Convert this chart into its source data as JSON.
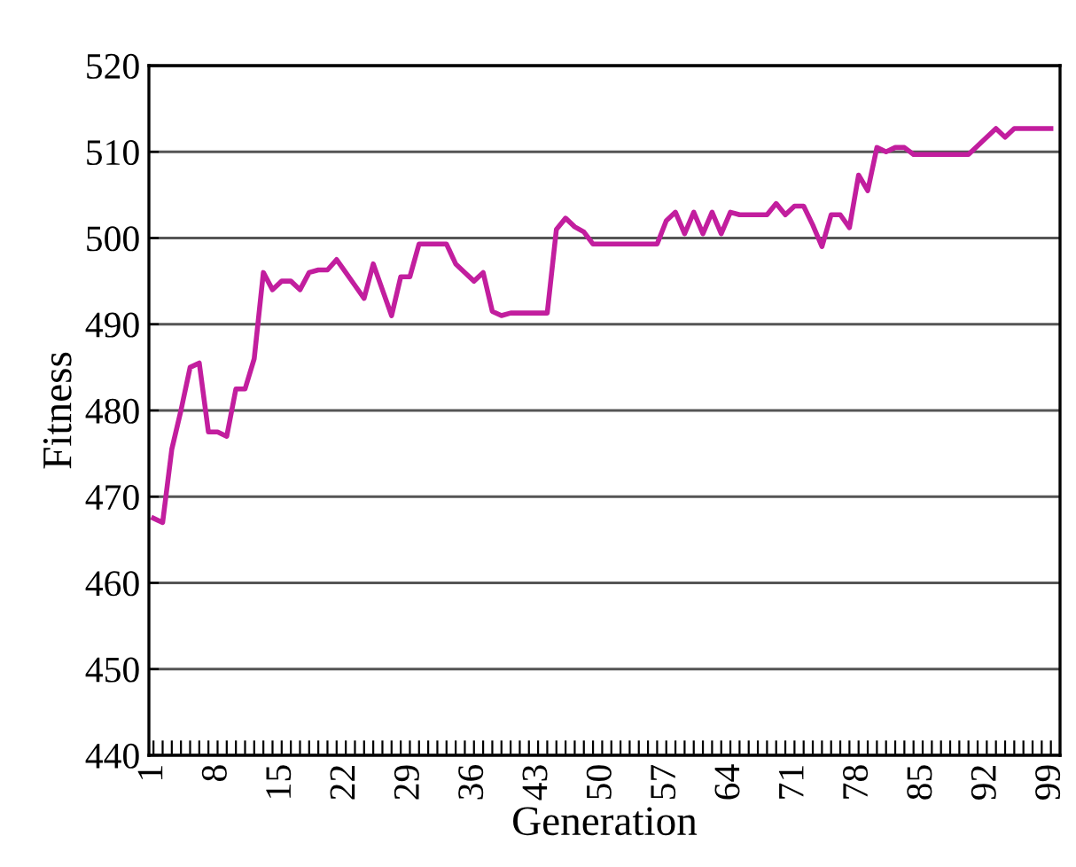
{
  "chart_data": {
    "type": "line",
    "xlabel": "Generation",
    "ylabel": "Fitness",
    "x": [
      1,
      2,
      3,
      4,
      5,
      6,
      7,
      8,
      9,
      10,
      11,
      12,
      13,
      14,
      15,
      16,
      17,
      18,
      19,
      20,
      21,
      22,
      23,
      24,
      25,
      26,
      27,
      28,
      29,
      30,
      31,
      32,
      33,
      34,
      35,
      36,
      37,
      38,
      39,
      40,
      41,
      42,
      43,
      44,
      45,
      46,
      47,
      48,
      49,
      50,
      51,
      52,
      53,
      54,
      55,
      56,
      57,
      58,
      59,
      60,
      61,
      62,
      63,
      64,
      65,
      66,
      67,
      68,
      69,
      70,
      71,
      72,
      73,
      74,
      75,
      76,
      77,
      78,
      79,
      80,
      81,
      82,
      83,
      84,
      85,
      86,
      87,
      88,
      89,
      90,
      91,
      92,
      93,
      94,
      95,
      96,
      97,
      98,
      99
    ],
    "series": [
      {
        "color": "#c21e9e",
        "values": [
          467.5,
          467,
          475.5,
          480,
          485,
          485.5,
          477.5,
          477.5,
          477,
          482.5,
          482.5,
          486,
          496,
          494,
          495,
          495,
          494,
          496,
          496.3,
          496.3,
          497.5,
          496,
          494.5,
          493,
          497,
          494,
          491,
          495.5,
          495.5,
          499.3,
          499.3,
          499.3,
          499.3,
          497,
          496,
          495,
          496,
          491.5,
          491,
          491.3,
          491.3,
          491.3,
          491.3,
          491.3,
          501,
          502.3,
          501.3,
          500.7,
          499.3,
          499.3,
          499.3,
          499.3,
          499.3,
          499.3,
          499.3,
          499.3,
          502,
          503,
          500.5,
          503,
          500.5,
          503,
          500.5,
          503,
          502.7,
          502.7,
          502.7,
          502.7,
          504,
          502.7,
          503.7,
          503.7,
          501.5,
          499,
          502.7,
          502.7,
          501.2,
          507.3,
          505.5,
          510.5,
          510,
          510.5,
          510.5,
          509.7,
          509.7,
          509.7,
          509.7,
          509.7,
          509.7,
          509.7,
          510.7,
          511.7,
          512.7,
          511.7,
          512.7,
          512.7,
          512.7,
          512.7,
          512.7
        ]
      }
    ],
    "xlim": [
      0.5,
      100
    ],
    "xticks": [
      1,
      {
        "value": 2,
        "label": null
      },
      {
        "value": 3,
        "label": null
      },
      {
        "value": 4,
        "label": null
      },
      {
        "value": 5,
        "label": null
      },
      {
        "value": 6,
        "label": null
      },
      {
        "value": 7,
        "label": null
      },
      8,
      {
        "value": 9,
        "label": null
      },
      {
        "value": 10,
        "label": null
      },
      {
        "value": 11,
        "label": null
      },
      {
        "value": 12,
        "label": null
      },
      {
        "value": 13,
        "label": null
      },
      {
        "value": 14,
        "label": null
      },
      15,
      {
        "value": 16,
        "label": null
      },
      {
        "value": 17,
        "label": null
      },
      {
        "value": 18,
        "label": null
      },
      {
        "value": 19,
        "label": null
      },
      {
        "value": 20,
        "label": null
      },
      {
        "value": 21,
        "label": null
      },
      22,
      {
        "value": 23,
        "label": null
      },
      {
        "value": 24,
        "label": null
      },
      {
        "value": 25,
        "label": null
      },
      {
        "value": 26,
        "label": null
      },
      {
        "value": 27,
        "label": null
      },
      {
        "value": 28,
        "label": null
      },
      29,
      {
        "value": 30,
        "label": null
      },
      {
        "value": 31,
        "label": null
      },
      {
        "value": 32,
        "label": null
      },
      {
        "value": 33,
        "label": null
      },
      {
        "value": 34,
        "label": null
      },
      {
        "value": 35,
        "label": null
      },
      36,
      {
        "value": 37,
        "label": null
      },
      {
        "value": 38,
        "label": null
      },
      {
        "value": 39,
        "label": null
      },
      {
        "value": 40,
        "label": null
      },
      {
        "value": 41,
        "label": null
      },
      {
        "value": 42,
        "label": null
      },
      43,
      {
        "value": 44,
        "label": null
      },
      {
        "value": 45,
        "label": null
      },
      {
        "value": 46,
        "label": null
      },
      {
        "value": 47,
        "label": null
      },
      {
        "value": 48,
        "label": null
      },
      {
        "value": 49,
        "label": null
      },
      50,
      {
        "value": 51,
        "label": null
      },
      {
        "value": 52,
        "label": null
      },
      {
        "value": 53,
        "label": null
      },
      {
        "value": 54,
        "label": null
      },
      {
        "value": 55,
        "label": null
      },
      {
        "value": 56,
        "label": null
      },
      57,
      {
        "value": 58,
        "label": null
      },
      {
        "value": 59,
        "label": null
      },
      {
        "value": 60,
        "label": null
      },
      {
        "value": 61,
        "label": null
      },
      {
        "value": 62,
        "label": null
      },
      {
        "value": 63,
        "label": null
      },
      64,
      {
        "value": 65,
        "label": null
      },
      {
        "value": 66,
        "label": null
      },
      {
        "value": 67,
        "label": null
      },
      {
        "value": 68,
        "label": null
      },
      {
        "value": 69,
        "label": null
      },
      {
        "value": 70,
        "label": null
      },
      71,
      {
        "value": 72,
        "label": null
      },
      {
        "value": 73,
        "label": null
      },
      {
        "value": 74,
        "label": null
      },
      {
        "value": 75,
        "label": null
      },
      {
        "value": 76,
        "label": null
      },
      {
        "value": 77,
        "label": null
      },
      78,
      {
        "value": 79,
        "label": null
      },
      {
        "value": 80,
        "label": null
      },
      {
        "value": 81,
        "label": null
      },
      {
        "value": 82,
        "label": null
      },
      {
        "value": 83,
        "label": null
      },
      {
        "value": 84,
        "label": null
      },
      85,
      {
        "value": 86,
        "label": null
      },
      {
        "value": 87,
        "label": null
      },
      {
        "value": 88,
        "label": null
      },
      {
        "value": 89,
        "label": null
      },
      {
        "value": 90,
        "label": null
      },
      {
        "value": 91,
        "label": null
      },
      92,
      {
        "value": 93,
        "label": null
      },
      {
        "value": 94,
        "label": null
      },
      {
        "value": 95,
        "label": null
      },
      {
        "value": 96,
        "label": null
      },
      {
        "value": 97,
        "label": null
      },
      {
        "value": 98,
        "label": null
      },
      99
    ],
    "ylim": [
      440,
      520
    ],
    "yticks": [
      440,
      450,
      460,
      470,
      480,
      490,
      500,
      510,
      520
    ],
    "grid": "y",
    "legend": false,
    "marker": "none",
    "line_style": "solid"
  }
}
